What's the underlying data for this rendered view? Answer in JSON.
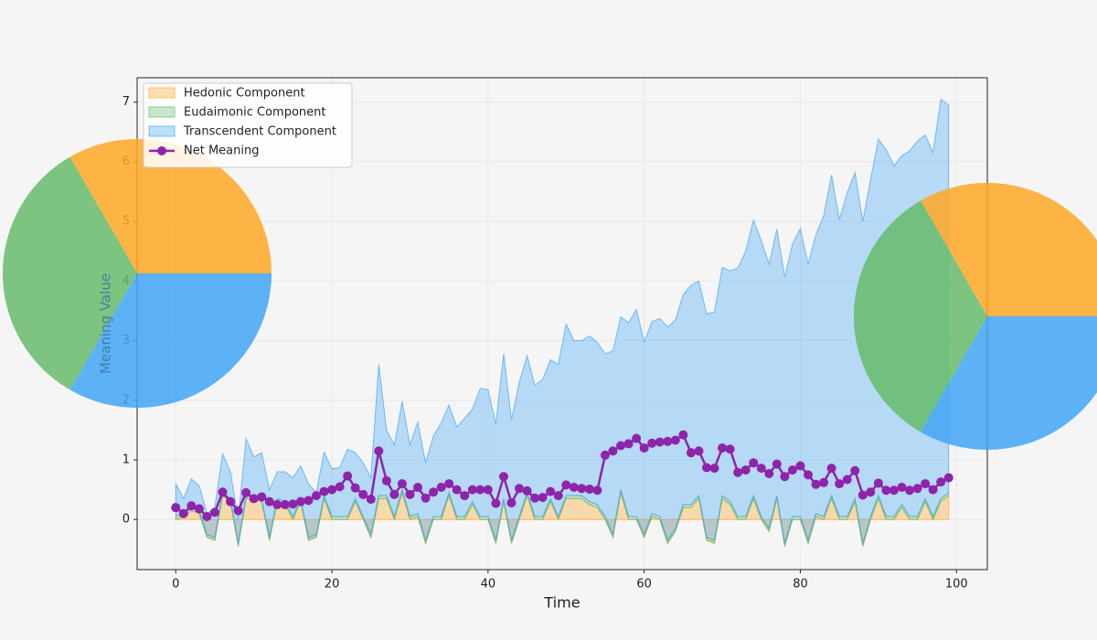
{
  "chart_data": [
    {
      "type": "stackplot",
      "stacked": true,
      "xlabel": "Time",
      "ylabel": "Meaning Value",
      "xlim": [
        -4.95,
        103.95
      ],
      "ylim": [
        -0.84,
        7.41
      ],
      "xticks": [
        0,
        20,
        40,
        60,
        80,
        100
      ],
      "yticks": [
        0,
        1,
        2,
        3,
        4,
        5,
        6,
        7
      ],
      "grid": true,
      "legend": "upper left",
      "x": [
        0,
        1,
        2,
        3,
        4,
        5,
        6,
        7,
        8,
        9,
        10,
        11,
        12,
        13,
        14,
        15,
        16,
        17,
        18,
        19,
        20,
        21,
        22,
        23,
        24,
        25,
        26,
        27,
        28,
        29,
        30,
        31,
        32,
        33,
        34,
        35,
        36,
        37,
        38,
        39,
        40,
        41,
        42,
        43,
        44,
        45,
        46,
        47,
        48,
        49,
        50,
        51,
        52,
        53,
        54,
        55,
        56,
        57,
        58,
        59,
        60,
        61,
        62,
        63,
        64,
        65,
        66,
        67,
        68,
        69,
        70,
        71,
        72,
        73,
        74,
        75,
        76,
        77,
        78,
        79,
        80,
        81,
        82,
        83,
        84,
        85,
        86,
        87,
        88,
        89,
        90,
        91,
        92,
        93,
        94,
        95,
        96,
        97,
        98,
        99
      ],
      "series": [
        {
          "name": "Hedonic Component",
          "color": "#ffa726",
          "values": [
            0.0,
            0.05,
            0.15,
            0.1,
            -0.3,
            -0.35,
            0.4,
            0.3,
            -0.45,
            0.35,
            0.35,
            0.3,
            -0.35,
            0.3,
            0.25,
            0.0,
            0.3,
            -0.35,
            -0.3,
            0.35,
            0.0,
            0.0,
            0.0,
            0.3,
            0.0,
            -0.3,
            0.35,
            0.35,
            0.0,
            0.45,
            0.0,
            0.05,
            -0.4,
            0.0,
            0.0,
            0.4,
            0.0,
            0.0,
            0.25,
            0.0,
            0.0,
            -0.4,
            0.3,
            -0.4,
            0.0,
            0.4,
            0.0,
            0.0,
            0.3,
            0.0,
            0.35,
            0.35,
            0.35,
            0.25,
            0.2,
            0.0,
            -0.3,
            0.45,
            0.0,
            0.0,
            -0.3,
            0.05,
            0.0,
            -0.4,
            -0.2,
            0.2,
            0.2,
            0.35,
            -0.35,
            -0.4,
            0.35,
            0.25,
            0.0,
            0.0,
            0.35,
            0.0,
            -0.2,
            0.35,
            -0.45,
            0.0,
            0.0,
            -0.4,
            0.05,
            0.0,
            0.35,
            0.0,
            0.0,
            0.3,
            -0.45,
            0.0,
            0.35,
            0.0,
            0.0,
            0.2,
            0.0,
            0.0,
            0.3,
            0.0,
            0.3,
            0.4
          ]
        },
        {
          "name": "Eudaimonic Component",
          "color": "#66bb6a",
          "values": [
            0.05,
            0.05,
            0.05,
            0.05,
            0.05,
            0.05,
            0.05,
            0.05,
            0.05,
            0.05,
            0.05,
            0.05,
            0.05,
            0.05,
            0.05,
            0.05,
            0.05,
            0.05,
            0.05,
            0.05,
            0.05,
            0.05,
            0.05,
            0.05,
            0.05,
            0.05,
            0.05,
            0.05,
            0.05,
            0.05,
            0.05,
            0.05,
            0.05,
            0.05,
            0.05,
            0.05,
            0.05,
            0.05,
            0.05,
            0.05,
            0.05,
            0.05,
            0.05,
            0.05,
            0.05,
            0.05,
            0.05,
            0.05,
            0.05,
            0.05,
            0.05,
            0.05,
            0.05,
            0.05,
            0.05,
            0.05,
            0.05,
            0.05,
            0.05,
            0.05,
            0.05,
            0.05,
            0.05,
            0.05,
            0.05,
            0.05,
            0.05,
            0.05,
            0.05,
            0.05,
            0.05,
            0.05,
            0.05,
            0.05,
            0.05,
            0.05,
            0.05,
            0.05,
            0.05,
            0.05,
            0.05,
            0.05,
            0.05,
            0.05,
            0.05,
            0.05,
            0.05,
            0.05,
            0.05,
            0.05,
            0.05,
            0.05,
            0.05,
            0.05,
            0.05,
            0.05,
            0.05,
            0.05,
            0.05,
            0.05
          ]
        },
        {
          "name": "Transcendent Component",
          "color": "#42a5f5",
          "values": [
            0.55,
            0.25,
            0.48,
            0.42,
            0.35,
            0.5,
            0.65,
            0.45,
            0.4,
            0.95,
            0.65,
            0.77,
            0.8,
            0.45,
            0.5,
            0.65,
            0.55,
            0.9,
            0.7,
            0.73,
            0.8,
            0.82,
            1.13,
            0.77,
            0.9,
            0.95,
            2.2,
            1.1,
            1.2,
            1.48,
            1.2,
            1.53,
            1.3,
            1.35,
            1.57,
            1.47,
            1.5,
            1.65,
            1.55,
            2.15,
            2.13,
            1.95,
            2.43,
            2.02,
            2.25,
            2.3,
            2.2,
            2.3,
            2.33,
            2.55,
            2.88,
            2.6,
            2.6,
            2.78,
            2.72,
            2.73,
            3.08,
            2.9,
            3.25,
            3.47,
            3.23,
            3.22,
            3.32,
            3.58,
            3.5,
            3.52,
            3.68,
            3.6,
            3.75,
            3.83,
            3.83,
            3.87,
            4.17,
            4.45,
            4.62,
            4.63,
            4.43,
            4.47,
            4.47,
            4.57,
            4.83,
            4.63,
            4.68,
            5.05,
            5.38,
            4.98,
            5.43,
            5.47,
            5.4,
            5.65,
            5.98,
            6.15,
            5.88,
            5.85,
            6.13,
            6.3,
            6.1,
            6.1,
            6.7,
            6.5
          ]
        },
        {
          "name": "Net Meaning",
          "color": "#8e24aa",
          "type": "line",
          "values": [
            0.2,
            0.1,
            0.23,
            0.18,
            0.05,
            0.12,
            0.46,
            0.3,
            0.15,
            0.45,
            0.35,
            0.38,
            0.3,
            0.25,
            0.25,
            0.26,
            0.3,
            0.32,
            0.4,
            0.47,
            0.5,
            0.55,
            0.73,
            0.53,
            0.42,
            0.34,
            1.15,
            0.65,
            0.42,
            0.6,
            0.42,
            0.54,
            0.36,
            0.46,
            0.54,
            0.6,
            0.5,
            0.4,
            0.5,
            0.5,
            0.5,
            0.27,
            0.72,
            0.28,
            0.52,
            0.48,
            0.36,
            0.37,
            0.47,
            0.4,
            0.58,
            0.54,
            0.52,
            0.51,
            0.49,
            1.08,
            1.15,
            1.24,
            1.27,
            1.36,
            1.2,
            1.28,
            1.3,
            1.31,
            1.33,
            1.42,
            1.12,
            1.15,
            0.87,
            0.86,
            1.2,
            1.18,
            0.79,
            0.83,
            0.95,
            0.86,
            0.77,
            0.93,
            0.72,
            0.83,
            0.9,
            0.75,
            0.59,
            0.62,
            0.86,
            0.6,
            0.67,
            0.82,
            0.41,
            0.46,
            0.61,
            0.49,
            0.49,
            0.54,
            0.49,
            0.52,
            0.6,
            0.5,
            0.63,
            0.7
          ]
        }
      ]
    },
    {
      "type": "pie",
      "values": [
        1,
        1,
        1
      ],
      "colors": [
        "#ffa726",
        "#66bb6a",
        "#42a5f5"
      ]
    },
    {
      "type": "pie",
      "values": [
        1,
        1,
        1
      ],
      "colors": [
        "#ffa726",
        "#66bb6a",
        "#42a5f5"
      ]
    }
  ]
}
